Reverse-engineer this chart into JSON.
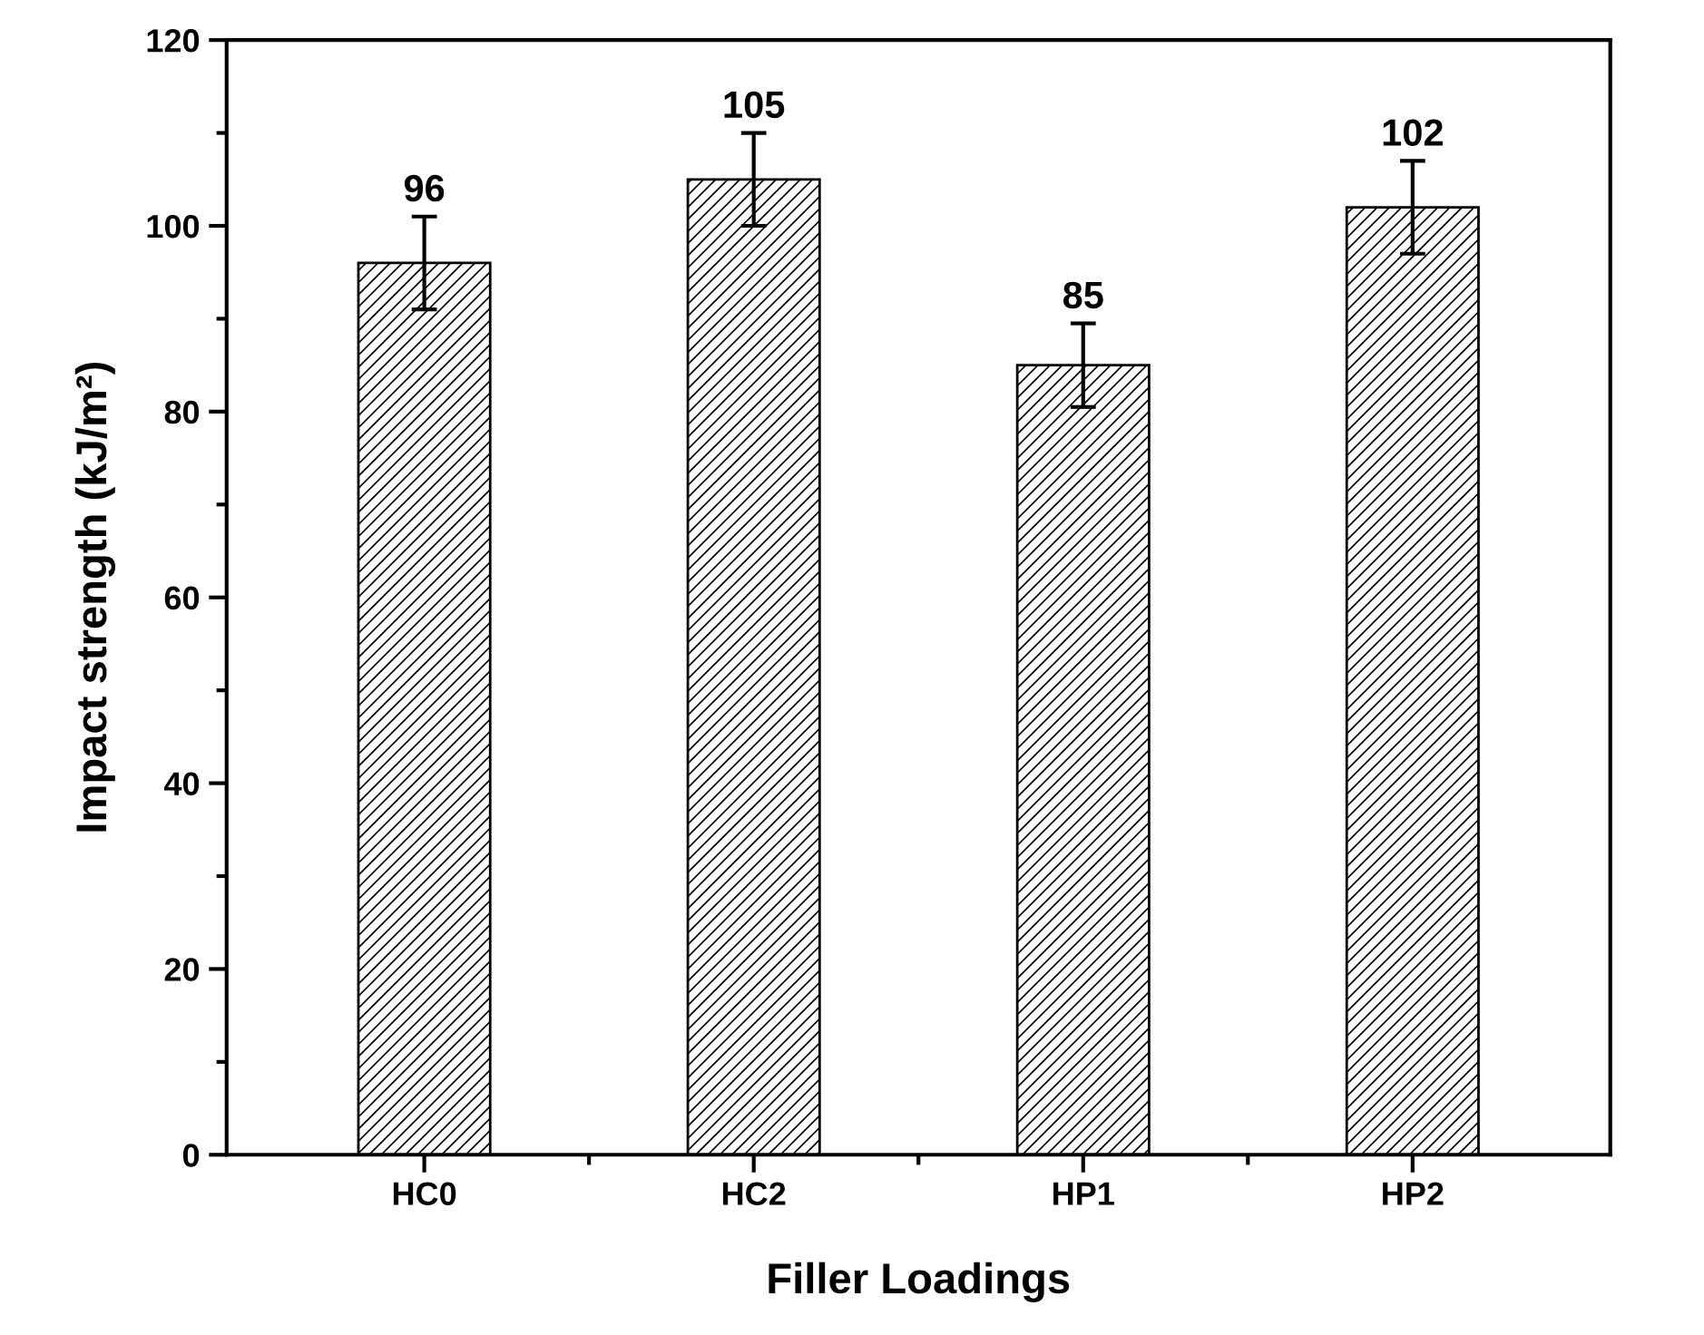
{
  "chart_data": {
    "type": "bar",
    "xlabel": "Filler Loadings",
    "ylabel": "Impact strength (kJ/m²)",
    "categories": [
      "HC0",
      "HC2",
      "HP1",
      "HP2"
    ],
    "values": [
      96,
      105,
      85,
      102
    ],
    "errors": [
      5,
      5,
      4.5,
      5
    ],
    "color": "#000000",
    "data_labels": true,
    "ylim": [
      0,
      120
    ],
    "yticks": [
      0,
      20,
      40,
      60,
      80,
      100,
      120
    ]
  }
}
